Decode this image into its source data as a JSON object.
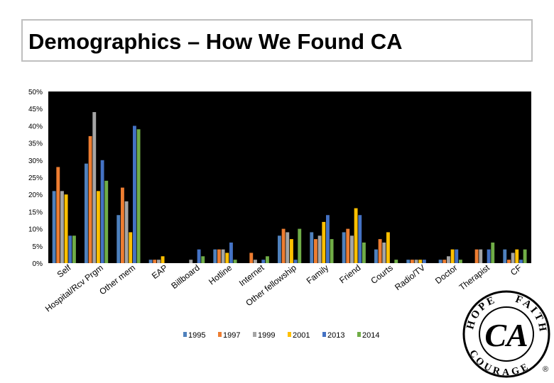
{
  "slide": {
    "title": "Demographics – How We Found CA"
  },
  "logo": {
    "words": [
      "HOPE",
      "FAITH",
      "COURAGE"
    ],
    "monogram": "CA",
    "registered_mark": "®"
  },
  "chart_data": {
    "type": "bar",
    "title": "",
    "xlabel": "",
    "ylabel": "",
    "ylim": [
      0,
      50
    ],
    "yticks": [
      "0%",
      "5%",
      "10%",
      "15%",
      "20%",
      "25%",
      "30%",
      "35%",
      "40%",
      "45%",
      "50%"
    ],
    "grid": false,
    "plot_background": "#000000",
    "legend_position": "bottom",
    "categories": [
      "Self",
      "Hospital/Rcv Prgm",
      "Other mem",
      "EAP",
      "Billboard",
      "Hotline",
      "Internet",
      "Other fellowship",
      "Family",
      "Friend",
      "Courts",
      "Radio/TV",
      "Doctor",
      "Therapist",
      "CF"
    ],
    "series": [
      {
        "name": "1995",
        "color": "#4f81bd",
        "values": [
          21,
          29,
          14,
          1,
          0,
          4,
          0,
          8,
          9,
          9,
          4,
          1,
          1,
          0,
          4
        ]
      },
      {
        "name": "1997",
        "color": "#ed7d31",
        "values": [
          28,
          37,
          22,
          1,
          0,
          4,
          3,
          10,
          7,
          10,
          7,
          1,
          1,
          4,
          1
        ]
      },
      {
        "name": "1999",
        "color": "#a5a5a5",
        "values": [
          21,
          44,
          18,
          1,
          1,
          4,
          1,
          9,
          8,
          8,
          6,
          1,
          2,
          4,
          3
        ]
      },
      {
        "name": "2001",
        "color": "#ffc000",
        "values": [
          20,
          21,
          9,
          2,
          0,
          3,
          0,
          7,
          12,
          16,
          9,
          1,
          4,
          0,
          4
        ]
      },
      {
        "name": "2013",
        "color": "#4472c4",
        "values": [
          8,
          30,
          40,
          0,
          4,
          6,
          1,
          1,
          14,
          14,
          0,
          1,
          4,
          4,
          1
        ]
      },
      {
        "name": "2014",
        "color": "#70ad47",
        "values": [
          8,
          24,
          39,
          0,
          2,
          1,
          2,
          10,
          7,
          6,
          1,
          0,
          1,
          6,
          4
        ]
      }
    ]
  }
}
